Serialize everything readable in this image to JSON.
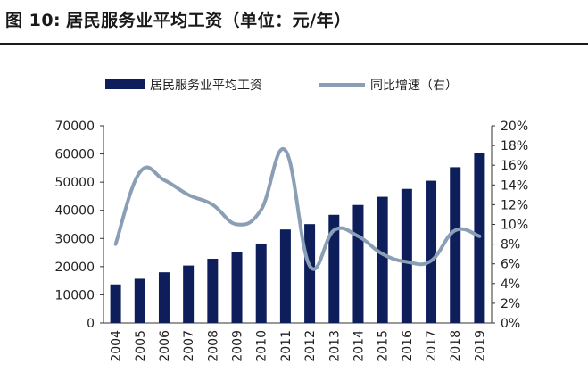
{
  "header": {
    "figure_label": "图 10:",
    "title": "居民服务业平均工资（单位：元/年）"
  },
  "chart_data": {
    "type": "bar",
    "categories": [
      "2004",
      "2005",
      "2006",
      "2007",
      "2008",
      "2009",
      "2010",
      "2011",
      "2012",
      "2013",
      "2014",
      "2015",
      "2016",
      "2017",
      "2018",
      "2019"
    ],
    "series": [
      {
        "name": "居民服务业平均工资",
        "type": "bar",
        "axis": "left",
        "color": "#0e1e5b",
        "values": [
          13700,
          15700,
          18000,
          20400,
          22800,
          25200,
          28200,
          33200,
          35100,
          38400,
          41900,
          44800,
          47600,
          50500,
          55300,
          60200
        ]
      },
      {
        "name": "同比增速（右）",
        "type": "line",
        "axis": "right",
        "color": "#8a9fb5",
        "values": [
          0.08,
          0.153,
          0.145,
          0.13,
          0.12,
          0.1,
          0.115,
          0.175,
          0.058,
          0.094,
          0.088,
          0.07,
          0.062,
          0.063,
          0.094,
          0.088
        ]
      }
    ],
    "y_left": {
      "ylim": [
        0,
        70000
      ],
      "ticks": [
        "0",
        "10000",
        "20000",
        "30000",
        "40000",
        "50000",
        "60000",
        "70000"
      ]
    },
    "y_right": {
      "ylim": [
        0,
        0.2
      ],
      "ticks": [
        "0%",
        "2%",
        "4%",
        "6%",
        "8%",
        "10%",
        "12%",
        "14%",
        "16%",
        "18%",
        "20%"
      ]
    },
    "legend_position": "top",
    "grid": false
  }
}
